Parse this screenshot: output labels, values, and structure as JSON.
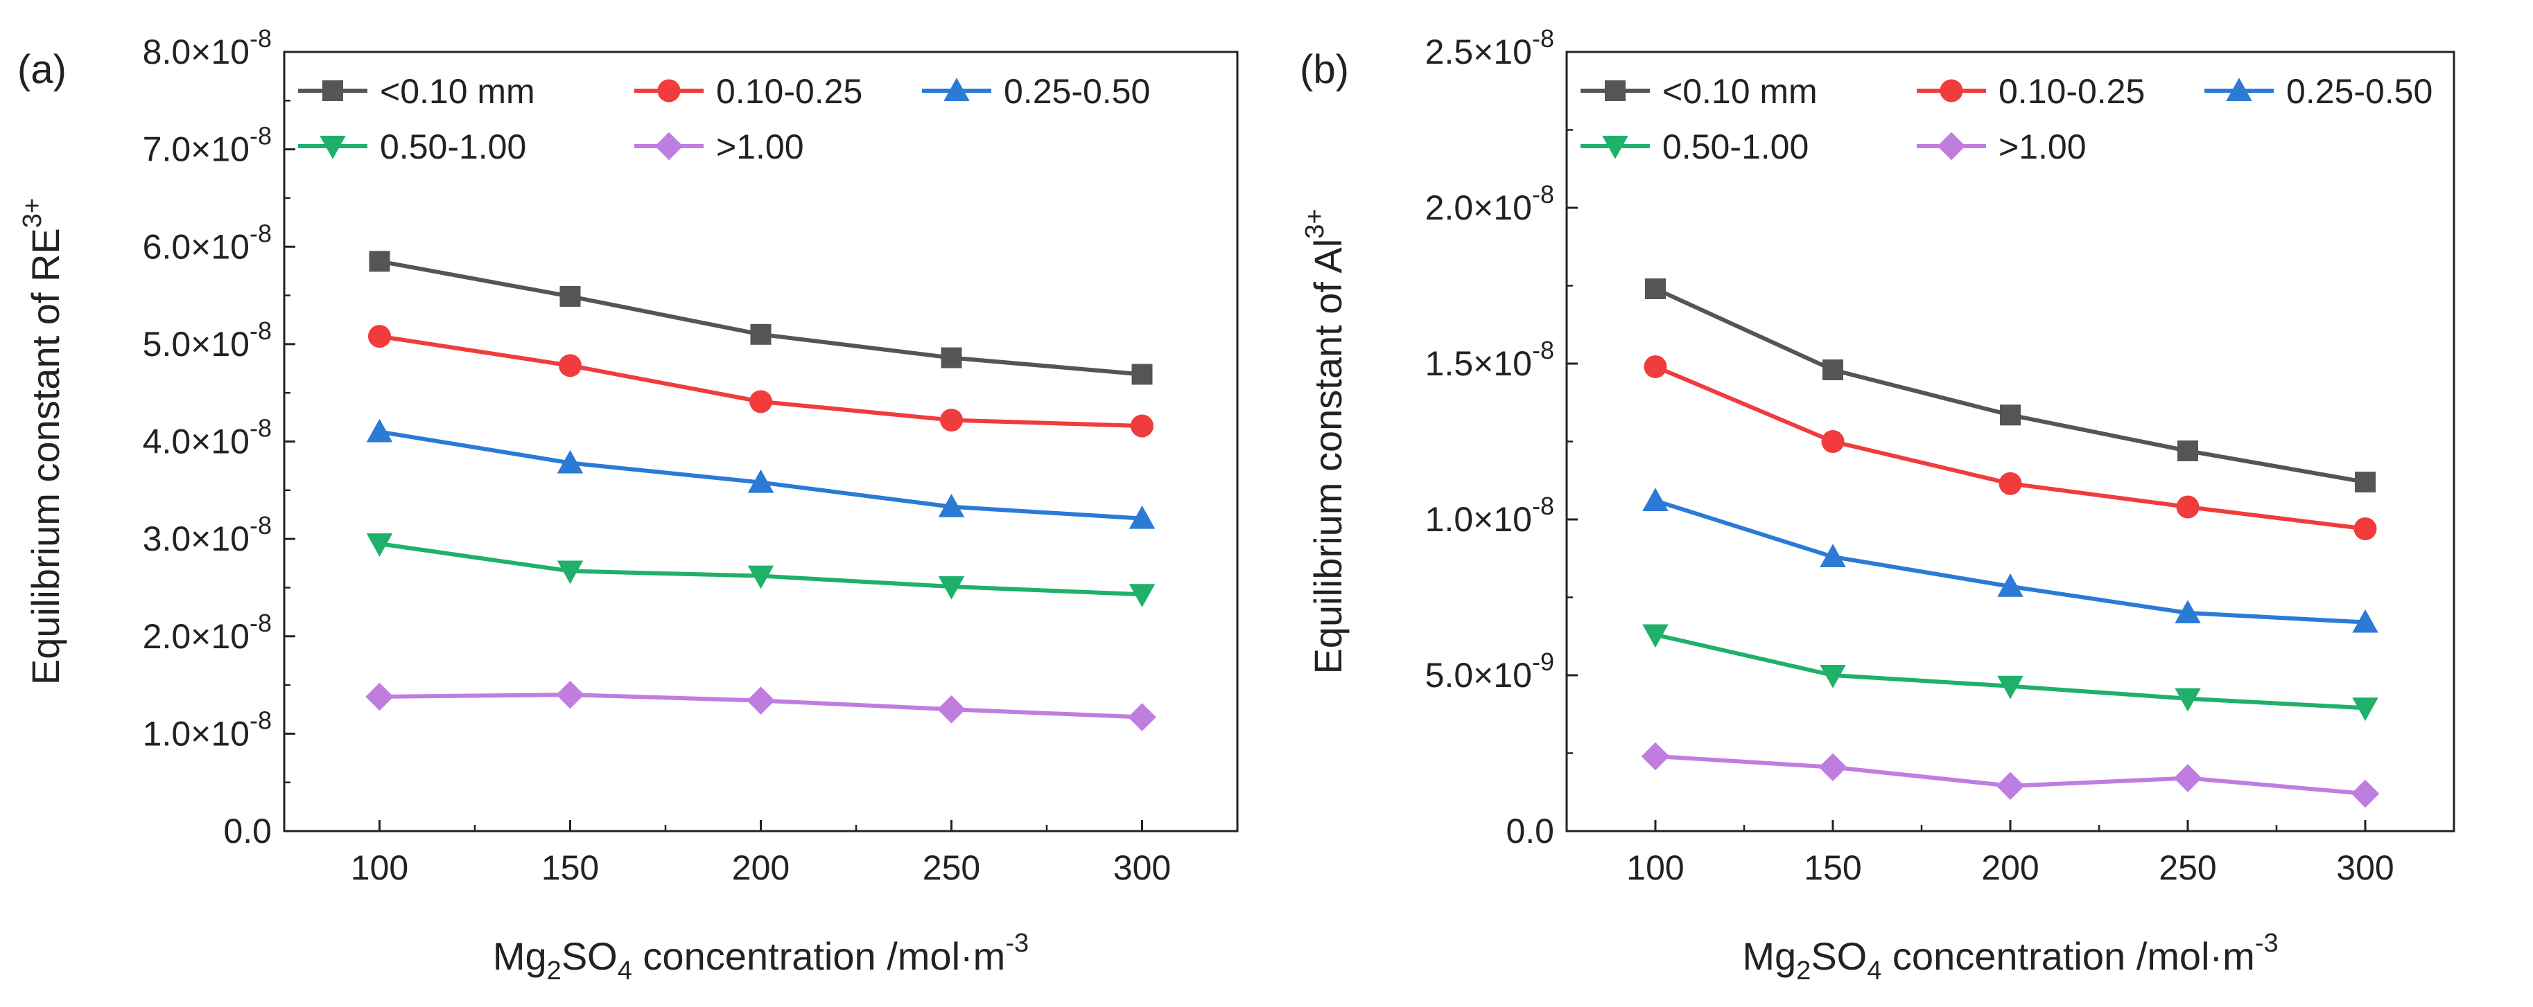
{
  "chart_data": [
    {
      "type": "line",
      "panel_label": "(a)",
      "x": [
        100,
        150,
        200,
        250,
        300
      ],
      "xlim": [
        75,
        325
      ],
      "xticks": [
        "100",
        "150",
        "200",
        "250",
        "300"
      ],
      "xlabel": {
        "pre": "Mg",
        "sub1": "2",
        "mid": "SO",
        "sub2": "4",
        "post": " concentration /mol·m",
        "sup": "-3"
      },
      "ylim": [
        0,
        8e-08
      ],
      "yticks": [
        {
          "value": 0,
          "mant": "0.0",
          "exp": ""
        },
        {
          "value": 1e-08,
          "mant": "1.0×10",
          "exp": "-8"
        },
        {
          "value": 2e-08,
          "mant": "2.0×10",
          "exp": "-8"
        },
        {
          "value": 3e-08,
          "mant": "3.0×10",
          "exp": "-8"
        },
        {
          "value": 4e-08,
          "mant": "4.0×10",
          "exp": "-8"
        },
        {
          "value": 5e-08,
          "mant": "5.0×10",
          "exp": "-8"
        },
        {
          "value": 6e-08,
          "mant": "6.0×10",
          "exp": "-8"
        },
        {
          "value": 7e-08,
          "mant": "7.0×10",
          "exp": "-8"
        },
        {
          "value": 8e-08,
          "mant": "8.0×10",
          "exp": "-8"
        }
      ],
      "ylabel": {
        "text": "Equilibrium constant of RE",
        "sup": "3+"
      },
      "series": [
        {
          "name": "<0.10 mm",
          "color": "#555555",
          "marker": "square",
          "values": [
            5.85e-08,
            5.49e-08,
            5.1e-08,
            4.86e-08,
            4.69e-08
          ]
        },
        {
          "name": "0.10-0.25",
          "color": "#f03c3c",
          "marker": "circle",
          "values": [
            5.08e-08,
            4.78e-08,
            4.41e-08,
            4.22e-08,
            4.16e-08
          ]
        },
        {
          "name": "0.25-0.50",
          "color": "#2a7ad6",
          "marker": "triangle-up",
          "values": [
            4.1e-08,
            3.78e-08,
            3.58e-08,
            3.33e-08,
            3.21e-08
          ]
        },
        {
          "name": "0.50-1.00",
          "color": "#1fb06a",
          "marker": "triangle-down",
          "values": [
            2.95e-08,
            2.67e-08,
            2.62e-08,
            2.51e-08,
            2.43e-08
          ]
        },
        {
          "name": ">1.00",
          "color": "#c07de0",
          "marker": "diamond",
          "values": [
            1.38e-08,
            1.4e-08,
            1.34e-08,
            1.25e-08,
            1.17e-08
          ]
        }
      ]
    },
    {
      "type": "line",
      "panel_label": "(b)",
      "x": [
        100,
        150,
        200,
        250,
        300
      ],
      "xlim": [
        75,
        325
      ],
      "xticks": [
        "100",
        "150",
        "200",
        "250",
        "300"
      ],
      "xlabel": {
        "pre": "Mg",
        "sub1": "2",
        "mid": "SO",
        "sub2": "4",
        "post": " concentration /mol·m",
        "sup": "-3"
      },
      "ylim": [
        0,
        2.5e-08
      ],
      "yticks": [
        {
          "value": 0,
          "mant": "0.0",
          "exp": ""
        },
        {
          "value": 5e-09,
          "mant": "5.0×10",
          "exp": "-9"
        },
        {
          "value": 1e-08,
          "mant": "1.0×10",
          "exp": "-8"
        },
        {
          "value": 1.5e-08,
          "mant": "1.5×10",
          "exp": "-8"
        },
        {
          "value": 2e-08,
          "mant": "2.0×10",
          "exp": "-8"
        },
        {
          "value": 2.5e-08,
          "mant": "2.5×10",
          "exp": "-8"
        }
      ],
      "ylabel": {
        "text": "Equilibrium constant of Al",
        "sup": "3+"
      },
      "series": [
        {
          "name": "<0.10 mm",
          "color": "#555555",
          "marker": "square",
          "values": [
            1.74e-08,
            1.48e-08,
            1.335e-08,
            1.22e-08,
            1.12e-08
          ]
        },
        {
          "name": "0.10-0.25",
          "color": "#f03c3c",
          "marker": "circle",
          "values": [
            1.49e-08,
            1.25e-08,
            1.115e-08,
            1.04e-08,
            9.7e-09
          ]
        },
        {
          "name": "0.25-0.50",
          "color": "#2a7ad6",
          "marker": "triangle-up",
          "values": [
            1.06e-08,
            8.8e-09,
            7.85e-09,
            7e-09,
            6.7e-09
          ]
        },
        {
          "name": "0.50-1.00",
          "color": "#1fb06a",
          "marker": "triangle-down",
          "values": [
            6.3e-09,
            5e-09,
            4.65e-09,
            4.25e-09,
            3.95e-09
          ]
        },
        {
          "name": ">1.00",
          "color": "#c07de0",
          "marker": "diamond",
          "values": [
            2.4e-09,
            2.05e-09,
            1.45e-09,
            1.7e-09,
            1.2e-09
          ]
        }
      ]
    }
  ]
}
